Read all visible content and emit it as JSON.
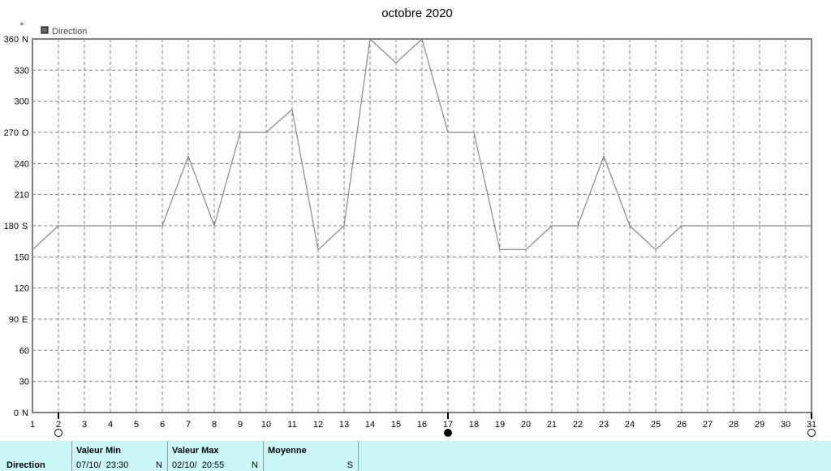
{
  "chart_data": {
    "type": "line",
    "title": "octobre 2020",
    "ylabel": "°",
    "legend": {
      "label": "Direction",
      "position": "top-left",
      "color": "#666666"
    },
    "series": [
      {
        "name": "Direction",
        "x": [
          1,
          2,
          3,
          4,
          5,
          6,
          7,
          8,
          9,
          10,
          11,
          12,
          13,
          14,
          15,
          16,
          17,
          18,
          19,
          20,
          21,
          22,
          23,
          24,
          25,
          26,
          27,
          28,
          29,
          30,
          31
        ],
        "values": [
          157,
          180,
          180,
          180,
          180,
          180,
          247,
          180,
          270,
          270,
          292,
          157,
          180,
          360,
          337,
          360,
          270,
          270,
          157,
          157,
          180,
          180,
          247,
          180,
          157,
          180,
          180,
          180,
          180,
          180,
          180
        ],
        "color": "#888888"
      }
    ],
    "xlim": [
      1,
      31
    ],
    "ylim": [
      0,
      360
    ],
    "x_ticks": [
      "1",
      "2",
      "3",
      "4",
      "5",
      "6",
      "7",
      "8",
      "9",
      "10",
      "11",
      "12",
      "13",
      "14",
      "15",
      "16",
      "17",
      "18",
      "19",
      "20",
      "21",
      "22",
      "23",
      "24",
      "25",
      "26",
      "27",
      "28",
      "29",
      "30",
      "31"
    ],
    "y_ticks": [
      {
        "value": 0,
        "label": "0",
        "dir": "N"
      },
      {
        "value": 30,
        "label": "30",
        "dir": ""
      },
      {
        "value": 60,
        "label": "60",
        "dir": ""
      },
      {
        "value": 90,
        "label": "90",
        "dir": "E"
      },
      {
        "value": 120,
        "label": "120",
        "dir": ""
      },
      {
        "value": 150,
        "label": "150",
        "dir": ""
      },
      {
        "value": 180,
        "label": "180",
        "dir": "S"
      },
      {
        "value": 210,
        "label": "210",
        "dir": ""
      },
      {
        "value": 240,
        "label": "240",
        "dir": ""
      },
      {
        "value": 270,
        "label": "270",
        "dir": "O"
      },
      {
        "value": 300,
        "label": "300",
        "dir": ""
      },
      {
        "value": 330,
        "label": "330",
        "dir": ""
      },
      {
        "value": 360,
        "label": "360",
        "dir": "N"
      }
    ],
    "grid": true,
    "moon_phases": [
      {
        "day": 2,
        "phase": "full"
      },
      {
        "day": 17,
        "phase": "new"
      },
      {
        "day": 31,
        "phase": "full"
      }
    ]
  },
  "summary": {
    "row_label": "Direction",
    "min": {
      "header": "Valeur Min",
      "date": "07/10/",
      "time": "23:30",
      "dir": "N"
    },
    "max": {
      "header": "Valeur Max",
      "date": "02/10/",
      "time": "20:55",
      "dir": "N"
    },
    "avg": {
      "header": "Moyenne",
      "dir": "S"
    }
  }
}
